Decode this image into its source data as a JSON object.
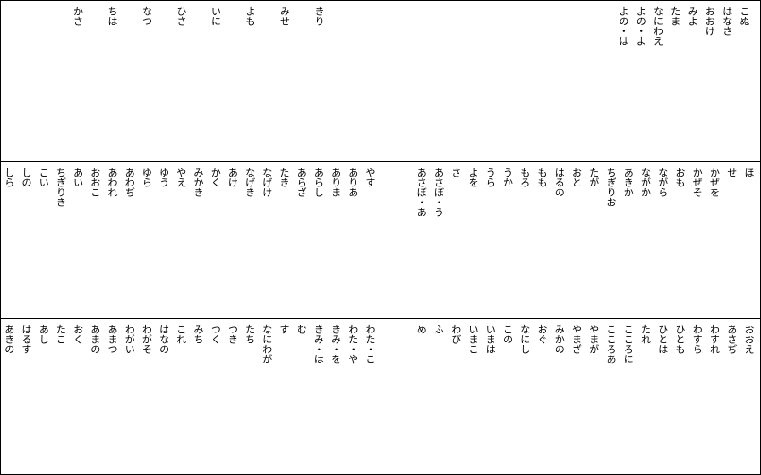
{
  "panels": [
    {
      "right": [
        "こぬ",
        "はなさ",
        "おおけ",
        "みよ",
        "たま",
        "なにわえ",
        "よの・よ",
        "よの・は"
      ],
      "left": [
        "きり",
        "みせ",
        "よも",
        "いに",
        "ひさ",
        "なつ",
        "ちは",
        "かさ"
      ]
    },
    {
      "right": [
        "ほ",
        "せ",
        "かぜを",
        "かぜそ",
        "おも",
        "ながら",
        "ながか",
        "あきか",
        "ちぎりお",
        "たが",
        "おと",
        "はるの",
        "もも",
        "もろ",
        "うか",
        "うら",
        "よを",
        "さ",
        "あさぼ・う",
        "あさぼ・あ"
      ],
      "left": [
        "やす",
        "ありあ",
        "ありま",
        "あらし",
        "あらざ",
        "たき",
        "なげけ",
        "なげき",
        "あけ",
        "かく",
        "みかき",
        "やえ",
        "ゆう",
        "ゆら",
        "あわぢ",
        "あわれ",
        "おおこ",
        "あい",
        "ちぎりき",
        "こい",
        "しの",
        "しら"
      ]
    },
    {
      "right": [
        "おおえ",
        "あさぢ",
        "わすれ",
        "わすら",
        "ひとも",
        "ひとは",
        "たれ",
        "こころに",
        "こころあ",
        "やまが",
        "やまざ",
        "みかの",
        "おぐ",
        "なにし",
        "この",
        "いまは",
        "いまこ",
        "わび",
        "ふ",
        "め"
      ],
      "left": [
        "わた・こ",
        "わた・や",
        "きみ・を",
        "きみ・は",
        "む",
        "す",
        "なにわが",
        "たち",
        "つき",
        "つく",
        "みち",
        "これ",
        "はなの",
        "わがそ",
        "わがい",
        "あまつ",
        "あまの",
        "おく",
        "たこ",
        "あし",
        "はるす",
        "あきの"
      ]
    }
  ]
}
